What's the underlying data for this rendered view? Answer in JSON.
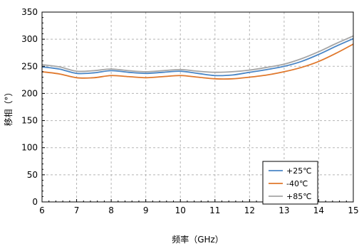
{
  "chart_data": {
    "type": "line",
    "xlabel": "频率（GHz）",
    "ylabel": "移相（°）",
    "xlim": [
      6,
      15
    ],
    "ylim": [
      0,
      350
    ],
    "xticks": [
      "6",
      "7",
      "8",
      "9",
      "10",
      "11",
      "12",
      "13",
      "14",
      "15"
    ],
    "yticks": [
      "0",
      "50",
      "100",
      "150",
      "200",
      "250",
      "300",
      "350"
    ],
    "grid": true,
    "legend_position": "bottom-right",
    "series": [
      {
        "name": "+25℃",
        "color": "#4A86C6",
        "x": [
          6,
          6.5,
          7,
          7.5,
          8,
          8.5,
          9,
          9.5,
          10,
          10.5,
          11,
          11.5,
          12,
          12.5,
          13,
          13.5,
          14,
          14.5,
          15
        ],
        "y": [
          249,
          245,
          237,
          238,
          242,
          239,
          237,
          239,
          241,
          237,
          233,
          234,
          239,
          244,
          250,
          259,
          272,
          287,
          301
        ]
      },
      {
        "name": "-40℃",
        "color": "#E0782C",
        "x": [
          6,
          6.5,
          7,
          7.5,
          8,
          8.5,
          9,
          9.5,
          10,
          10.5,
          11,
          11.5,
          12,
          12.5,
          13,
          13.5,
          14,
          14.5,
          15
        ],
        "y": [
          240,
          236,
          229,
          229,
          233,
          231,
          229,
          231,
          233,
          230,
          227,
          227,
          230,
          234,
          240,
          248,
          259,
          274,
          291
        ]
      },
      {
        "name": "+85℃",
        "color": "#A5A5A5",
        "x": [
          6,
          6.5,
          7,
          7.5,
          8,
          8.5,
          9,
          9.5,
          10,
          10.5,
          11,
          11.5,
          12,
          12.5,
          13,
          13.5,
          14,
          14.5,
          15
        ],
        "y": [
          253,
          249,
          241,
          242,
          245,
          242,
          240,
          242,
          244,
          241,
          239,
          240,
          243,
          248,
          254,
          264,
          277,
          292,
          306
        ]
      }
    ]
  }
}
